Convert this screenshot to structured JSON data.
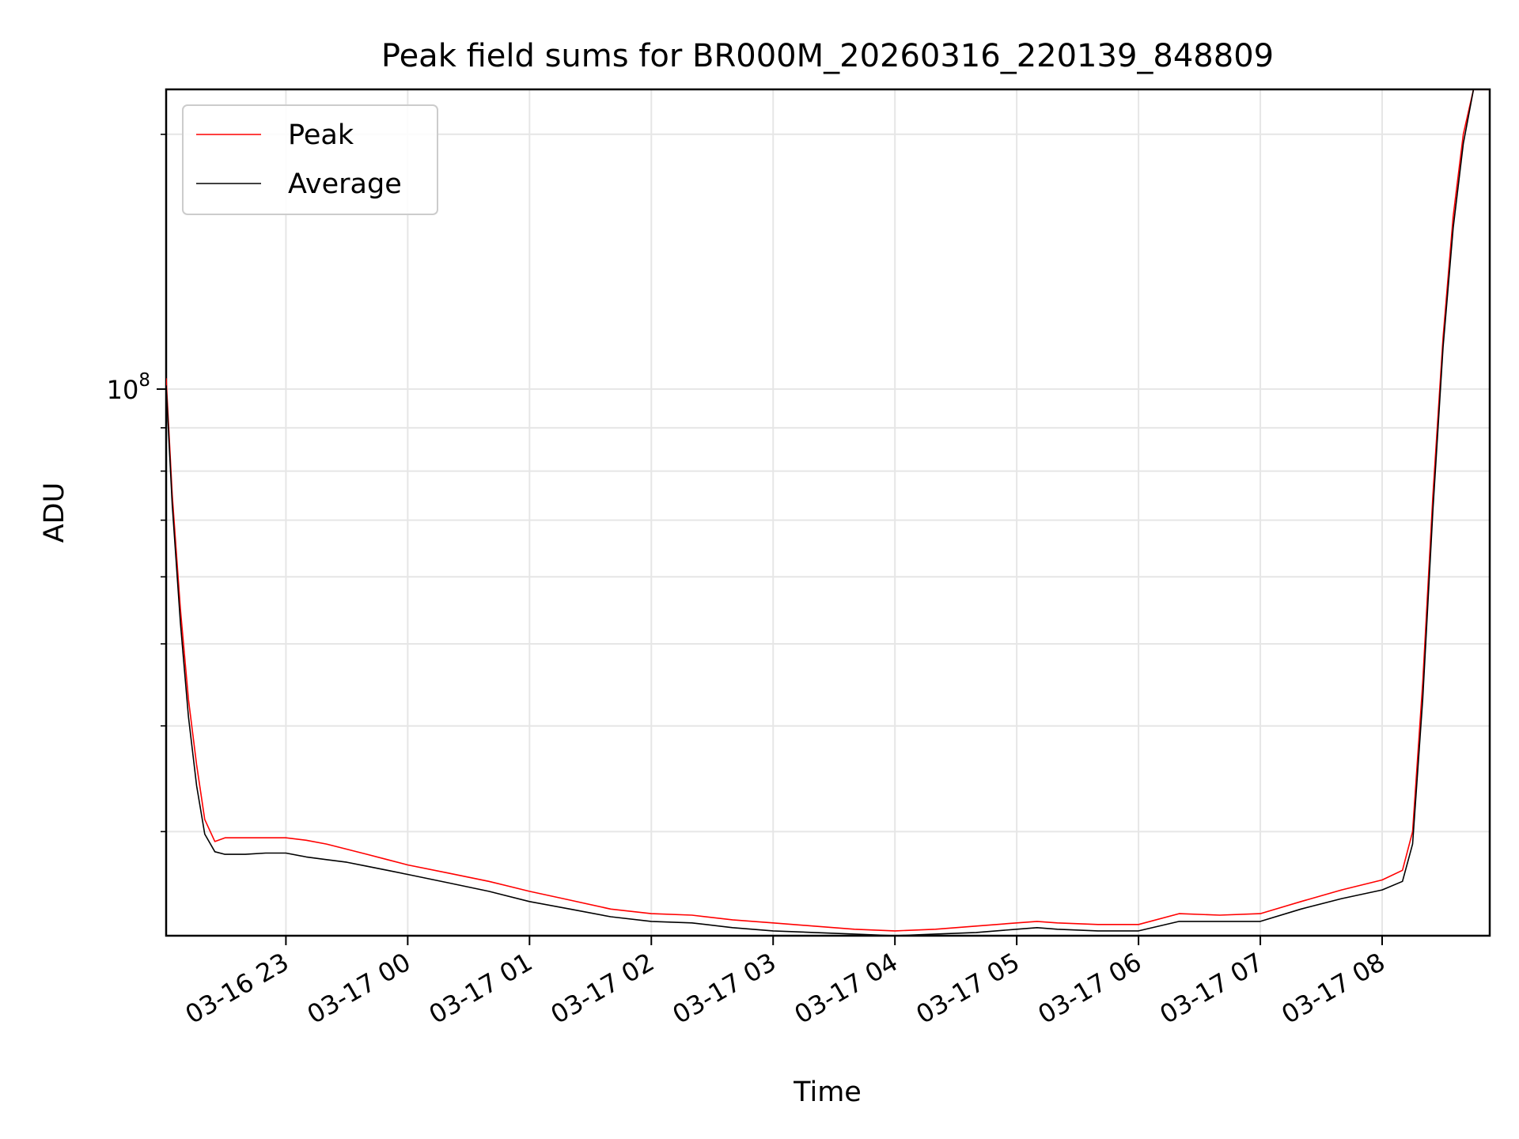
{
  "chart_data": {
    "type": "line",
    "title": "Peak field sums for BR000M_20260316_220139_848809",
    "xlabel": "Time",
    "ylabel": "ADU",
    "yscale": "log",
    "xlim": [
      "2026-03-16 22:01",
      "2026-03-17 08:53"
    ],
    "ylim": [
      22600000,
      226000000
    ],
    "x_ticks": [
      {
        "label": "03-16 23",
        "time": "2026-03-16 23:00"
      },
      {
        "label": "03-17 00",
        "time": "2026-03-17 00:00"
      },
      {
        "label": "03-17 01",
        "time": "2026-03-17 01:00"
      },
      {
        "label": "03-17 02",
        "time": "2026-03-17 02:00"
      },
      {
        "label": "03-17 03",
        "time": "2026-03-17 03:00"
      },
      {
        "label": "03-17 04",
        "time": "2026-03-17 04:00"
      },
      {
        "label": "03-17 05",
        "time": "2026-03-17 05:00"
      },
      {
        "label": "03-17 06",
        "time": "2026-03-17 06:00"
      },
      {
        "label": "03-17 07",
        "time": "2026-03-17 07:00"
      },
      {
        "label": "03-17 08",
        "time": "2026-03-17 08:00"
      }
    ],
    "y_ticks": [
      {
        "label_base": "10",
        "label_exp": "8",
        "value": 100000000
      }
    ],
    "grid": true,
    "legend_position": "upper-left",
    "series": [
      {
        "name": "Peak",
        "color": "#ff0000",
        "x": [
          "2026-03-16 22:01",
          "2026-03-16 22:04",
          "2026-03-16 22:08",
          "2026-03-16 22:12",
          "2026-03-16 22:16",
          "2026-03-16 22:20",
          "2026-03-16 22:25",
          "2026-03-16 22:30",
          "2026-03-16 22:40",
          "2026-03-16 22:50",
          "2026-03-16 23:00",
          "2026-03-16 23:10",
          "2026-03-16 23:20",
          "2026-03-16 23:30",
          "2026-03-16 23:40",
          "2026-03-16 23:50",
          "2026-03-17 00:00",
          "2026-03-17 00:20",
          "2026-03-17 00:40",
          "2026-03-17 01:00",
          "2026-03-17 01:20",
          "2026-03-17 01:40",
          "2026-03-17 02:00",
          "2026-03-17 02:20",
          "2026-03-17 02:40",
          "2026-03-17 03:00",
          "2026-03-17 03:20",
          "2026-03-17 03:40",
          "2026-03-17 04:00",
          "2026-03-17 04:20",
          "2026-03-17 04:40",
          "2026-03-17 05:00",
          "2026-03-17 05:10",
          "2026-03-17 05:20",
          "2026-03-17 05:40",
          "2026-03-17 06:00",
          "2026-03-17 06:20",
          "2026-03-17 06:40",
          "2026-03-17 07:00",
          "2026-03-17 07:20",
          "2026-03-17 07:40",
          "2026-03-17 08:00",
          "2026-03-17 08:10",
          "2026-03-17 08:15",
          "2026-03-17 08:20",
          "2026-03-17 08:25",
          "2026-03-17 08:30",
          "2026-03-17 08:35",
          "2026-03-17 08:40",
          "2026-03-17 08:45",
          "2026-03-17 08:48",
          "2026-03-17 08:53"
        ],
        "y": [
          103000000,
          75000000,
          55000000,
          43000000,
          36000000,
          31000000,
          29200000,
          29500000,
          29500000,
          29500000,
          29500000,
          29300000,
          29000000,
          28600000,
          28200000,
          27800000,
          27400000,
          26800000,
          26200000,
          25500000,
          24900000,
          24300000,
          24000000,
          23900000,
          23600000,
          23400000,
          23200000,
          23000000,
          22900000,
          23000000,
          23200000,
          23400000,
          23500000,
          23400000,
          23300000,
          23300000,
          24000000,
          23900000,
          24000000,
          24800000,
          25600000,
          26300000,
          27000000,
          30000000,
          45000000,
          75000000,
          115000000,
          160000000,
          200000000,
          226000000,
          226000000,
          226000000
        ]
      },
      {
        "name": "Average",
        "color": "#000000",
        "x": [
          "2026-03-16 22:01",
          "2026-03-16 22:04",
          "2026-03-16 22:08",
          "2026-03-16 22:12",
          "2026-03-16 22:16",
          "2026-03-16 22:20",
          "2026-03-16 22:25",
          "2026-03-16 22:30",
          "2026-03-16 22:40",
          "2026-03-16 22:50",
          "2026-03-16 23:00",
          "2026-03-16 23:10",
          "2026-03-16 23:20",
          "2026-03-16 23:30",
          "2026-03-16 23:40",
          "2026-03-16 23:50",
          "2026-03-17 00:00",
          "2026-03-17 00:20",
          "2026-03-17 00:40",
          "2026-03-17 01:00",
          "2026-03-17 01:20",
          "2026-03-17 01:40",
          "2026-03-17 02:00",
          "2026-03-17 02:20",
          "2026-03-17 02:40",
          "2026-03-17 03:00",
          "2026-03-17 03:20",
          "2026-03-17 03:40",
          "2026-03-17 04:00",
          "2026-03-17 04:20",
          "2026-03-17 04:40",
          "2026-03-17 05:00",
          "2026-03-17 05:10",
          "2026-03-17 05:20",
          "2026-03-17 05:40",
          "2026-03-17 06:00",
          "2026-03-17 06:20",
          "2026-03-17 06:40",
          "2026-03-17 07:00",
          "2026-03-17 07:20",
          "2026-03-17 07:40",
          "2026-03-17 08:00",
          "2026-03-17 08:10",
          "2026-03-17 08:15",
          "2026-03-17 08:20",
          "2026-03-17 08:25",
          "2026-03-17 08:30",
          "2026-03-17 08:35",
          "2026-03-17 08:40",
          "2026-03-17 08:45",
          "2026-03-17 08:48",
          "2026-03-17 08:53"
        ],
        "y": [
          101000000,
          73000000,
          53000000,
          41000000,
          34000000,
          29800000,
          28400000,
          28200000,
          28200000,
          28300000,
          28300000,
          28000000,
          27800000,
          27600000,
          27300000,
          27000000,
          26700000,
          26100000,
          25500000,
          24800000,
          24300000,
          23800000,
          23500000,
          23400000,
          23100000,
          22900000,
          22800000,
          22700000,
          22600000,
          22700000,
          22800000,
          23000000,
          23100000,
          23000000,
          22900000,
          22900000,
          23500000,
          23500000,
          23500000,
          24300000,
          25000000,
          25600000,
          26200000,
          29000000,
          43000000,
          72000000,
          112000000,
          155000000,
          195000000,
          226000000,
          226000000,
          226000000
        ]
      }
    ]
  }
}
